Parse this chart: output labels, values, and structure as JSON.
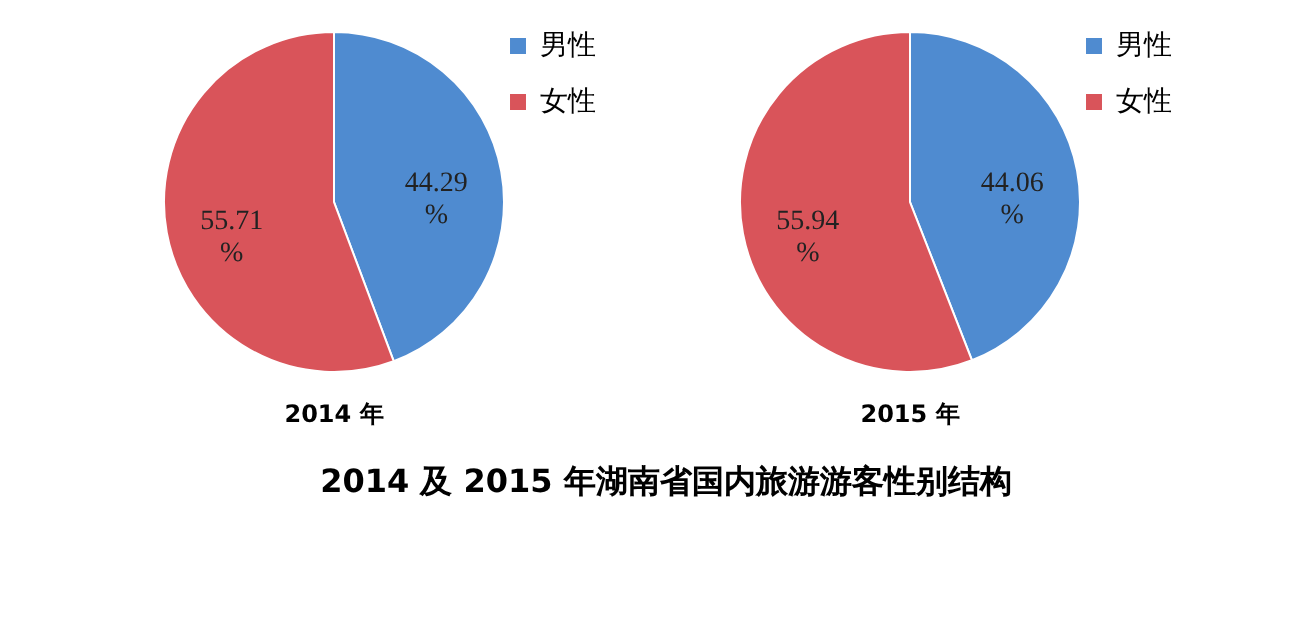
{
  "chart_data": [
    {
      "type": "pie",
      "title": "2014 年",
      "categories": [
        "男性",
        "女性"
      ],
      "values": [
        44.29,
        55.71
      ],
      "colors": [
        "#4f8bd0",
        "#d9545a"
      ],
      "value_labels": [
        "44.29\n%",
        "55.71\n%"
      ],
      "legend": "right",
      "annotations": [
        "2014 及 2015 年湖南省国内旅游游客性别结构"
      ]
    },
    {
      "type": "pie",
      "title": "2015 年",
      "categories": [
        "男性",
        "女性"
      ],
      "values": [
        44.06,
        55.94
      ],
      "colors": [
        "#4f8bd0",
        "#d9545a"
      ],
      "value_labels": [
        "44.06\n%",
        "55.94\n%"
      ],
      "legend": "right"
    }
  ]
}
